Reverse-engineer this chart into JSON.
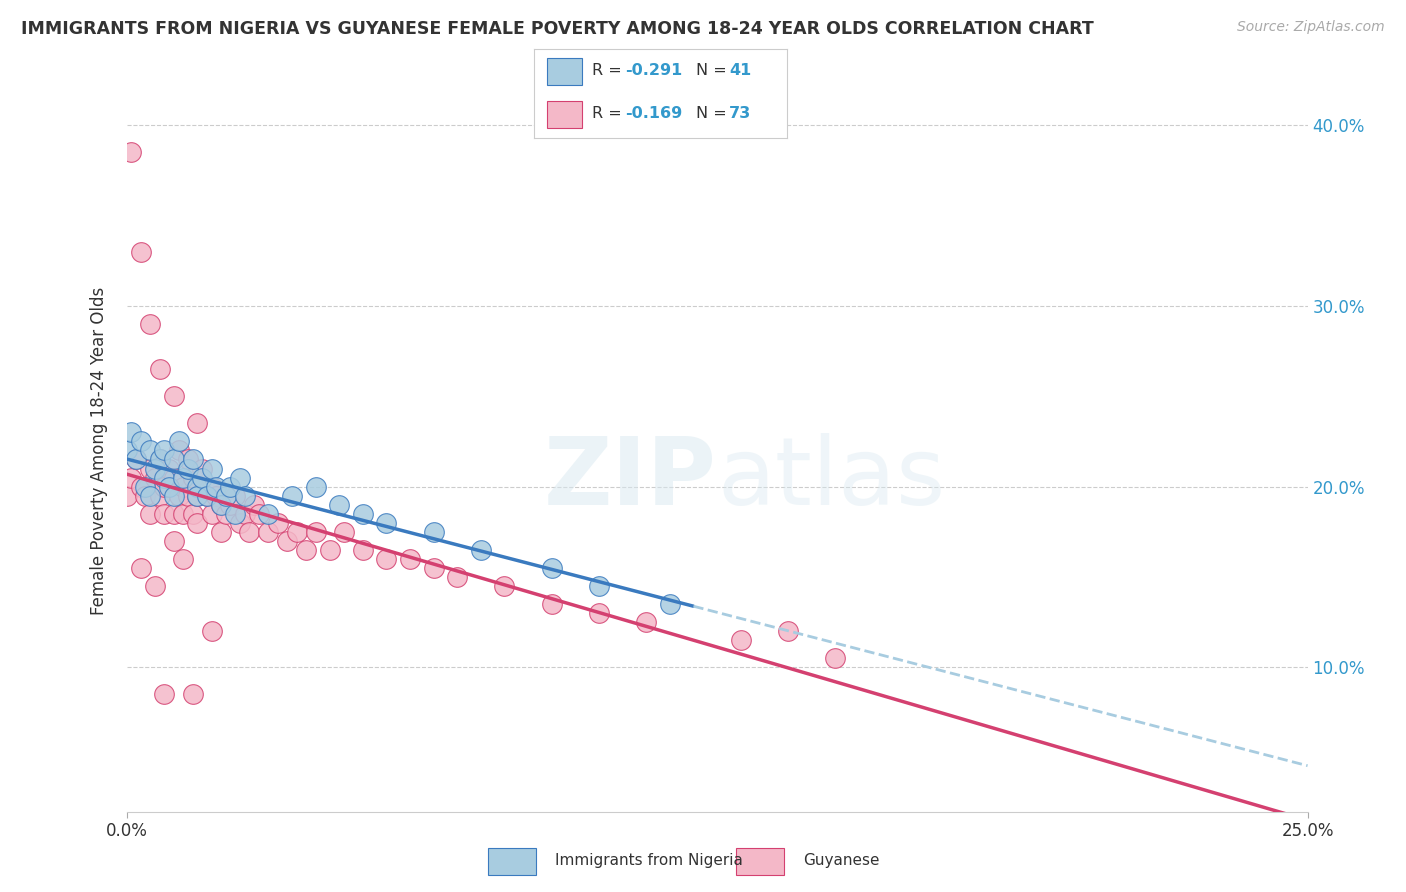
{
  "title": "IMMIGRANTS FROM NIGERIA VS GUYANESE FEMALE POVERTY AMONG 18-24 YEAR OLDS CORRELATION CHART",
  "source": "Source: ZipAtlas.com",
  "ylabel": "Female Poverty Among 18-24 Year Olds",
  "xlim": [
    0.0,
    0.25
  ],
  "ylim": [
    0.02,
    0.42
  ],
  "blue_color": "#a8cce0",
  "pink_color": "#f4b8c8",
  "blue_line_color": "#3a7abf",
  "pink_line_color": "#d44070",
  "dashed_line_color": "#a8cce0",
  "watermark_text": "ZIPatlas",
  "nigeria_x": [
    0.0,
    0.001,
    0.002,
    0.003,
    0.004,
    0.005,
    0.005,
    0.006,
    0.007,
    0.008,
    0.008,
    0.009,
    0.01,
    0.01,
    0.011,
    0.012,
    0.013,
    0.014,
    0.015,
    0.015,
    0.016,
    0.017,
    0.018,
    0.019,
    0.02,
    0.021,
    0.022,
    0.023,
    0.024,
    0.025,
    0.03,
    0.035,
    0.04,
    0.045,
    0.05,
    0.055,
    0.065,
    0.075,
    0.09,
    0.1,
    0.115
  ],
  "nigeria_y": [
    0.22,
    0.23,
    0.215,
    0.225,
    0.2,
    0.22,
    0.195,
    0.21,
    0.215,
    0.205,
    0.22,
    0.2,
    0.215,
    0.195,
    0.225,
    0.205,
    0.21,
    0.215,
    0.2,
    0.195,
    0.205,
    0.195,
    0.21,
    0.2,
    0.19,
    0.195,
    0.2,
    0.185,
    0.205,
    0.195,
    0.185,
    0.195,
    0.2,
    0.19,
    0.185,
    0.18,
    0.175,
    0.165,
    0.155,
    0.145,
    0.135
  ],
  "guyanese_x": [
    0.0,
    0.001,
    0.002,
    0.003,
    0.004,
    0.005,
    0.005,
    0.006,
    0.007,
    0.007,
    0.008,
    0.008,
    0.009,
    0.01,
    0.01,
    0.011,
    0.011,
    0.012,
    0.012,
    0.013,
    0.013,
    0.014,
    0.014,
    0.015,
    0.015,
    0.016,
    0.017,
    0.018,
    0.018,
    0.019,
    0.02,
    0.02,
    0.021,
    0.022,
    0.023,
    0.024,
    0.025,
    0.026,
    0.027,
    0.028,
    0.03,
    0.032,
    0.034,
    0.036,
    0.038,
    0.04,
    0.043,
    0.046,
    0.05,
    0.055,
    0.06,
    0.065,
    0.07,
    0.08,
    0.09,
    0.1,
    0.11,
    0.13,
    0.14,
    0.15,
    0.001,
    0.003,
    0.005,
    0.007,
    0.01,
    0.015,
    0.003,
    0.006,
    0.008,
    0.01,
    0.012,
    0.014,
    0.018
  ],
  "guyanese_y": [
    0.195,
    0.205,
    0.215,
    0.2,
    0.195,
    0.21,
    0.185,
    0.205,
    0.195,
    0.215,
    0.2,
    0.185,
    0.21,
    0.205,
    0.185,
    0.195,
    0.22,
    0.2,
    0.185,
    0.215,
    0.195,
    0.205,
    0.185,
    0.195,
    0.18,
    0.21,
    0.195,
    0.2,
    0.185,
    0.195,
    0.19,
    0.175,
    0.185,
    0.19,
    0.195,
    0.18,
    0.185,
    0.175,
    0.19,
    0.185,
    0.175,
    0.18,
    0.17,
    0.175,
    0.165,
    0.175,
    0.165,
    0.175,
    0.165,
    0.16,
    0.16,
    0.155,
    0.15,
    0.145,
    0.135,
    0.13,
    0.125,
    0.115,
    0.12,
    0.105,
    0.385,
    0.33,
    0.29,
    0.265,
    0.25,
    0.235,
    0.155,
    0.145,
    0.085,
    0.17,
    0.16,
    0.085,
    0.12
  ]
}
